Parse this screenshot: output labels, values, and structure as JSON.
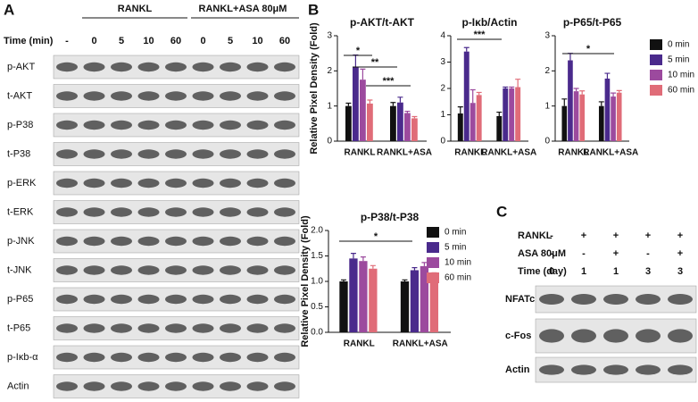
{
  "panel_a": {
    "label": "A",
    "groups": [
      "RANKL",
      "RANKL+ASA 80μM"
    ],
    "time_label": "Time (min)",
    "times": [
      "-",
      "0",
      "5",
      "10",
      "60",
      "0",
      "5",
      "10",
      "60"
    ],
    "rows": [
      "p-AKT",
      "t-AKT",
      "p-P38",
      "t-P38",
      "p-ERK",
      "t-ERK",
      "p-JNK",
      "t-JNK",
      "p-P65",
      "t-P65",
      "p-Iκb-α",
      "Actin"
    ]
  },
  "panel_b_label": "B",
  "panel_c": {
    "label": "C",
    "rows": [
      {
        "label": "RANKL",
        "values": [
          "-",
          "+",
          "+",
          "+",
          "+"
        ]
      },
      {
        "label": "ASA 80μM",
        "values": [
          "-",
          "-",
          "+",
          "-",
          "+"
        ]
      },
      {
        "label": "Time (day)",
        "values": [
          "0",
          "1",
          "1",
          "3",
          "3"
        ]
      }
    ],
    "blots": [
      "NFATc1",
      "c-Fos",
      "Actin"
    ]
  },
  "chart_data": [
    {
      "type": "bar",
      "title": "p-AKT/t-AKT",
      "ylabel": "Relative Pixel Density (Fold)",
      "categories": [
        "RANKL",
        "RANKL+ASA"
      ],
      "series": [
        {
          "name": "0 min",
          "color": "#111111",
          "values": [
            1.0,
            1.0
          ],
          "errors": [
            0.08,
            0.1
          ]
        },
        {
          "name": "5 min",
          "color": "#4a2a8c",
          "values": [
            2.1,
            1.1
          ],
          "errors": [
            0.35,
            0.15
          ]
        },
        {
          "name": "10 min",
          "color": "#9c4a9e",
          "values": [
            1.75,
            0.8
          ],
          "errors": [
            0.3,
            0.05
          ]
        },
        {
          "name": "60 min",
          "color": "#e06c78",
          "values": [
            1.07,
            0.65
          ],
          "errors": [
            0.1,
            0.05
          ]
        }
      ],
      "ylim": [
        0,
        3
      ],
      "yticks": [
        0,
        1,
        2,
        3
      ],
      "annotations": [
        "*",
        "**",
        "***"
      ]
    },
    {
      "type": "bar",
      "title": "p-Iκb/Actin",
      "categories": [
        "RANKL",
        "RANKL+ASA"
      ],
      "series": [
        {
          "name": "0 min",
          "color": "#111111",
          "values": [
            1.05,
            0.95
          ],
          "errors": [
            0.25,
            0.15
          ]
        },
        {
          "name": "5 min",
          "color": "#4a2a8c",
          "values": [
            3.4,
            2.0
          ],
          "errors": [
            0.15,
            0.05
          ]
        },
        {
          "name": "10 min",
          "color": "#9c4a9e",
          "values": [
            1.45,
            2.0
          ],
          "errors": [
            0.5,
            0.05
          ]
        },
        {
          "name": "60 min",
          "color": "#e06c78",
          "values": [
            1.75,
            2.05
          ],
          "errors": [
            0.1,
            0.3
          ]
        }
      ],
      "ylim": [
        0,
        4
      ],
      "yticks": [
        0,
        1,
        2,
        3,
        4
      ],
      "annotations": [
        "***"
      ]
    },
    {
      "type": "bar",
      "title": "p-P65/t-P65",
      "categories": [
        "RANKL",
        "RANKL+ASA"
      ],
      "legend": "right",
      "series": [
        {
          "name": "0 min",
          "color": "#111111",
          "values": [
            1.0,
            1.0
          ],
          "errors": [
            0.2,
            0.12
          ]
        },
        {
          "name": "5 min",
          "color": "#4a2a8c",
          "values": [
            2.3,
            1.78
          ],
          "errors": [
            0.2,
            0.15
          ]
        },
        {
          "name": "10 min",
          "color": "#9c4a9e",
          "values": [
            1.42,
            1.27
          ],
          "errors": [
            0.08,
            0.1
          ]
        },
        {
          "name": "60 min",
          "color": "#e06c78",
          "values": [
            1.33,
            1.38
          ],
          "errors": [
            0.1,
            0.06
          ]
        }
      ],
      "ylim": [
        0,
        3
      ],
      "yticks": [
        0,
        1,
        2,
        3
      ],
      "annotations": [
        "*"
      ]
    },
    {
      "type": "bar",
      "title": "p-P38/t-P38",
      "ylabel": "Relative Pixel Density (Fold)",
      "categories": [
        "RANKL",
        "RANKL+ASA"
      ],
      "legend": "right",
      "series": [
        {
          "name": "0 min",
          "color": "#111111",
          "values": [
            1.0,
            1.0
          ],
          "errors": [
            0.03,
            0.03
          ]
        },
        {
          "name": "5 min",
          "color": "#4a2a8c",
          "values": [
            1.45,
            1.22
          ],
          "errors": [
            0.1,
            0.05
          ]
        },
        {
          "name": "10 min",
          "color": "#9c4a9e",
          "values": [
            1.4,
            1.3
          ],
          "errors": [
            0.08,
            0.07
          ]
        },
        {
          "name": "60 min",
          "color": "#e06c78",
          "values": [
            1.25,
            1.12
          ],
          "errors": [
            0.06,
            0.05
          ]
        }
      ],
      "ylim": [
        0,
        2
      ],
      "yticks": [
        {
          "value": 0,
          "label": "0.0"
        },
        {
          "value": 0.5,
          "label": "0.5"
        },
        {
          "value": 1,
          "label": "1.0"
        },
        {
          "value": 1.5,
          "label": "1.5"
        },
        {
          "value": 2,
          "label": "2.0"
        }
      ],
      "annotations": [
        "*"
      ]
    }
  ]
}
